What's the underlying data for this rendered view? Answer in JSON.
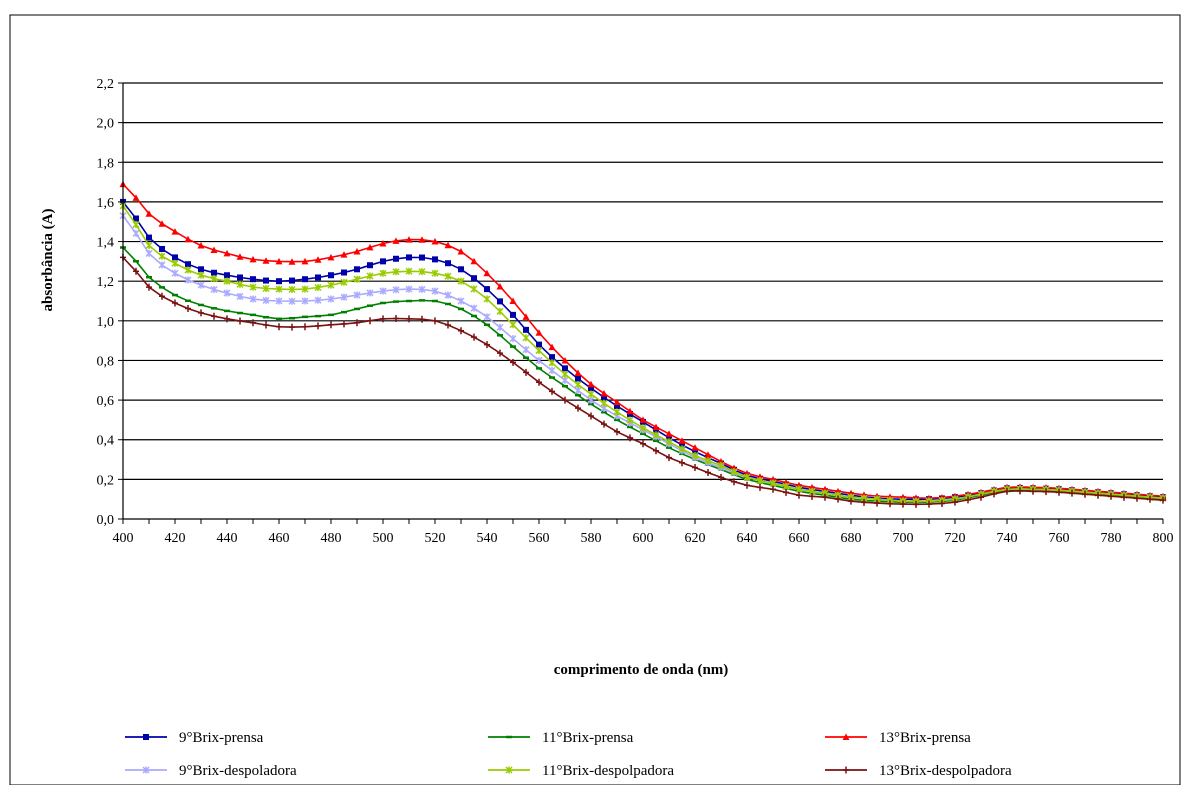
{
  "chart_data": {
    "type": "line",
    "title": "",
    "xlabel": "comprimento de onda (nm)",
    "ylabel": "absorbância (A)",
    "xlim": [
      400,
      800
    ],
    "ylim": [
      0.0,
      2.2
    ],
    "xticks": [
      "400",
      "420",
      "440",
      "460",
      "480",
      "500",
      "520",
      "540",
      "560",
      "580",
      "600",
      "620",
      "640",
      "660",
      "680",
      "700",
      "720",
      "740",
      "760",
      "780",
      "800"
    ],
    "yticks": [
      "0,0",
      "0,2",
      "0,4",
      "0,6",
      "0,8",
      "1,0",
      "1,2",
      "1,4",
      "1,6",
      "1,8",
      "2,0",
      "2,2"
    ],
    "grid": "horizontal",
    "legend_position": "bottom",
    "series": [
      {
        "name": "9°Brix-prensa",
        "color": "#0000aa",
        "marker": "square",
        "points": [
          [
            400,
            1.6
          ],
          [
            410,
            1.42
          ],
          [
            420,
            1.32
          ],
          [
            430,
            1.26
          ],
          [
            440,
            1.23
          ],
          [
            450,
            1.21
          ],
          [
            460,
            1.2
          ],
          [
            470,
            1.21
          ],
          [
            480,
            1.23
          ],
          [
            490,
            1.26
          ],
          [
            500,
            1.3
          ],
          [
            510,
            1.32
          ],
          [
            520,
            1.31
          ],
          [
            530,
            1.26
          ],
          [
            540,
            1.16
          ],
          [
            550,
            1.03
          ],
          [
            560,
            0.88
          ],
          [
            570,
            0.76
          ],
          [
            580,
            0.66
          ],
          [
            590,
            0.57
          ],
          [
            600,
            0.49
          ],
          [
            610,
            0.41
          ],
          [
            620,
            0.34
          ],
          [
            630,
            0.28
          ],
          [
            640,
            0.22
          ],
          [
            650,
            0.19
          ],
          [
            660,
            0.16
          ],
          [
            670,
            0.14
          ],
          [
            680,
            0.12
          ],
          [
            690,
            0.105
          ],
          [
            700,
            0.1
          ],
          [
            710,
            0.1
          ],
          [
            720,
            0.11
          ],
          [
            730,
            0.13
          ],
          [
            740,
            0.155
          ],
          [
            750,
            0.155
          ],
          [
            760,
            0.15
          ],
          [
            770,
            0.14
          ],
          [
            780,
            0.13
          ],
          [
            790,
            0.12
          ],
          [
            800,
            0.11
          ]
        ]
      },
      {
        "name": "11°Brix-prensa",
        "color": "#008000",
        "marker": "dash",
        "points": [
          [
            400,
            1.37
          ],
          [
            410,
            1.22
          ],
          [
            420,
            1.13
          ],
          [
            430,
            1.08
          ],
          [
            440,
            1.05
          ],
          [
            450,
            1.03
          ],
          [
            460,
            1.01
          ],
          [
            470,
            1.02
          ],
          [
            480,
            1.03
          ],
          [
            490,
            1.06
          ],
          [
            500,
            1.09
          ],
          [
            510,
            1.1
          ],
          [
            520,
            1.1
          ],
          [
            530,
            1.06
          ],
          [
            540,
            0.98
          ],
          [
            550,
            0.87
          ],
          [
            560,
            0.76
          ],
          [
            570,
            0.67
          ],
          [
            580,
            0.58
          ],
          [
            590,
            0.5
          ],
          [
            600,
            0.43
          ],
          [
            610,
            0.36
          ],
          [
            620,
            0.3
          ],
          [
            630,
            0.25
          ],
          [
            640,
            0.2
          ],
          [
            650,
            0.17
          ],
          [
            660,
            0.14
          ],
          [
            670,
            0.12
          ],
          [
            680,
            0.1
          ],
          [
            690,
            0.09
          ],
          [
            700,
            0.085
          ],
          [
            710,
            0.085
          ],
          [
            720,
            0.095
          ],
          [
            730,
            0.12
          ],
          [
            740,
            0.145
          ],
          [
            750,
            0.145
          ],
          [
            760,
            0.14
          ],
          [
            770,
            0.13
          ],
          [
            780,
            0.12
          ],
          [
            790,
            0.11
          ],
          [
            800,
            0.1
          ]
        ]
      },
      {
        "name": "13°Brix-prensa",
        "color": "#ff0000",
        "marker": "triangle",
        "points": [
          [
            400,
            1.69
          ],
          [
            410,
            1.54
          ],
          [
            420,
            1.45
          ],
          [
            430,
            1.38
          ],
          [
            440,
            1.34
          ],
          [
            450,
            1.31
          ],
          [
            460,
            1.3
          ],
          [
            470,
            1.3
          ],
          [
            480,
            1.32
          ],
          [
            490,
            1.35
          ],
          [
            500,
            1.39
          ],
          [
            510,
            1.41
          ],
          [
            520,
            1.4
          ],
          [
            530,
            1.35
          ],
          [
            540,
            1.24
          ],
          [
            550,
            1.1
          ],
          [
            560,
            0.94
          ],
          [
            570,
            0.8
          ],
          [
            580,
            0.68
          ],
          [
            590,
            0.59
          ],
          [
            600,
            0.5
          ],
          [
            610,
            0.43
          ],
          [
            620,
            0.36
          ],
          [
            630,
            0.29
          ],
          [
            640,
            0.23
          ],
          [
            650,
            0.2
          ],
          [
            660,
            0.17
          ],
          [
            670,
            0.15
          ],
          [
            680,
            0.13
          ],
          [
            690,
            0.115
          ],
          [
            700,
            0.11
          ],
          [
            710,
            0.105
          ],
          [
            720,
            0.115
          ],
          [
            730,
            0.135
          ],
          [
            740,
            0.16
          ],
          [
            750,
            0.16
          ],
          [
            760,
            0.155
          ],
          [
            770,
            0.145
          ],
          [
            780,
            0.135
          ],
          [
            790,
            0.125
          ],
          [
            800,
            0.115
          ]
        ]
      },
      {
        "name": "9°Brix-despoladora",
        "color": "#aaaaff",
        "marker": "asterisk",
        "points": [
          [
            400,
            1.53
          ],
          [
            410,
            1.34
          ],
          [
            420,
            1.24
          ],
          [
            430,
            1.18
          ],
          [
            440,
            1.14
          ],
          [
            450,
            1.11
          ],
          [
            460,
            1.1
          ],
          [
            470,
            1.1
          ],
          [
            480,
            1.11
          ],
          [
            490,
            1.13
          ],
          [
            500,
            1.15
          ],
          [
            510,
            1.16
          ],
          [
            520,
            1.15
          ],
          [
            530,
            1.1
          ],
          [
            540,
            1.02
          ],
          [
            550,
            0.91
          ],
          [
            560,
            0.8
          ],
          [
            570,
            0.7
          ],
          [
            580,
            0.6
          ],
          [
            590,
            0.52
          ],
          [
            600,
            0.45
          ],
          [
            610,
            0.38
          ],
          [
            620,
            0.31
          ],
          [
            630,
            0.26
          ],
          [
            640,
            0.21
          ],
          [
            650,
            0.18
          ],
          [
            660,
            0.15
          ],
          [
            670,
            0.13
          ],
          [
            680,
            0.11
          ],
          [
            690,
            0.1
          ],
          [
            700,
            0.09
          ],
          [
            710,
            0.09
          ],
          [
            720,
            0.1
          ],
          [
            730,
            0.125
          ],
          [
            740,
            0.15
          ],
          [
            750,
            0.15
          ],
          [
            760,
            0.145
          ],
          [
            770,
            0.135
          ],
          [
            780,
            0.125
          ],
          [
            790,
            0.115
          ],
          [
            800,
            0.105
          ]
        ]
      },
      {
        "name": "11°Brix-despolpadora",
        "color": "#99cc00",
        "marker": "asterisk",
        "points": [
          [
            400,
            1.58
          ],
          [
            410,
            1.38
          ],
          [
            420,
            1.29
          ],
          [
            430,
            1.23
          ],
          [
            440,
            1.2
          ],
          [
            450,
            1.17
          ],
          [
            460,
            1.16
          ],
          [
            470,
            1.16
          ],
          [
            480,
            1.18
          ],
          [
            490,
            1.21
          ],
          [
            500,
            1.24
          ],
          [
            510,
            1.25
          ],
          [
            520,
            1.24
          ],
          [
            530,
            1.2
          ],
          [
            540,
            1.11
          ],
          [
            550,
            0.98
          ],
          [
            560,
            0.85
          ],
          [
            570,
            0.73
          ],
          [
            580,
            0.63
          ],
          [
            590,
            0.54
          ],
          [
            600,
            0.46
          ],
          [
            610,
            0.39
          ],
          [
            620,
            0.32
          ],
          [
            630,
            0.27
          ],
          [
            640,
            0.21
          ],
          [
            650,
            0.18
          ],
          [
            660,
            0.15
          ],
          [
            670,
            0.13
          ],
          [
            680,
            0.11
          ],
          [
            690,
            0.1
          ],
          [
            700,
            0.09
          ],
          [
            710,
            0.09
          ],
          [
            720,
            0.1
          ],
          [
            730,
            0.125
          ],
          [
            740,
            0.15
          ],
          [
            750,
            0.15
          ],
          [
            760,
            0.145
          ],
          [
            770,
            0.135
          ],
          [
            780,
            0.125
          ],
          [
            790,
            0.115
          ],
          [
            800,
            0.105
          ]
        ]
      },
      {
        "name": "13°Brix-despolpadora",
        "color": "#7a1010",
        "marker": "plus",
        "points": [
          [
            400,
            1.32
          ],
          [
            410,
            1.17
          ],
          [
            420,
            1.09
          ],
          [
            430,
            1.04
          ],
          [
            440,
            1.01
          ],
          [
            450,
            0.99
          ],
          [
            460,
            0.97
          ],
          [
            470,
            0.97
          ],
          [
            480,
            0.98
          ],
          [
            490,
            0.99
          ],
          [
            500,
            1.01
          ],
          [
            510,
            1.01
          ],
          [
            520,
            1.0
          ],
          [
            530,
            0.95
          ],
          [
            540,
            0.88
          ],
          [
            550,
            0.79
          ],
          [
            560,
            0.69
          ],
          [
            570,
            0.6
          ],
          [
            580,
            0.52
          ],
          [
            590,
            0.44
          ],
          [
            600,
            0.38
          ],
          [
            610,
            0.31
          ],
          [
            620,
            0.26
          ],
          [
            630,
            0.21
          ],
          [
            640,
            0.17
          ],
          [
            650,
            0.15
          ],
          [
            660,
            0.12
          ],
          [
            670,
            0.11
          ],
          [
            680,
            0.09
          ],
          [
            690,
            0.08
          ],
          [
            700,
            0.075
          ],
          [
            710,
            0.075
          ],
          [
            720,
            0.085
          ],
          [
            730,
            0.11
          ],
          [
            740,
            0.14
          ],
          [
            750,
            0.14
          ],
          [
            760,
            0.135
          ],
          [
            770,
            0.125
          ],
          [
            780,
            0.115
          ],
          [
            790,
            0.105
          ],
          [
            800,
            0.095
          ]
        ]
      }
    ]
  }
}
